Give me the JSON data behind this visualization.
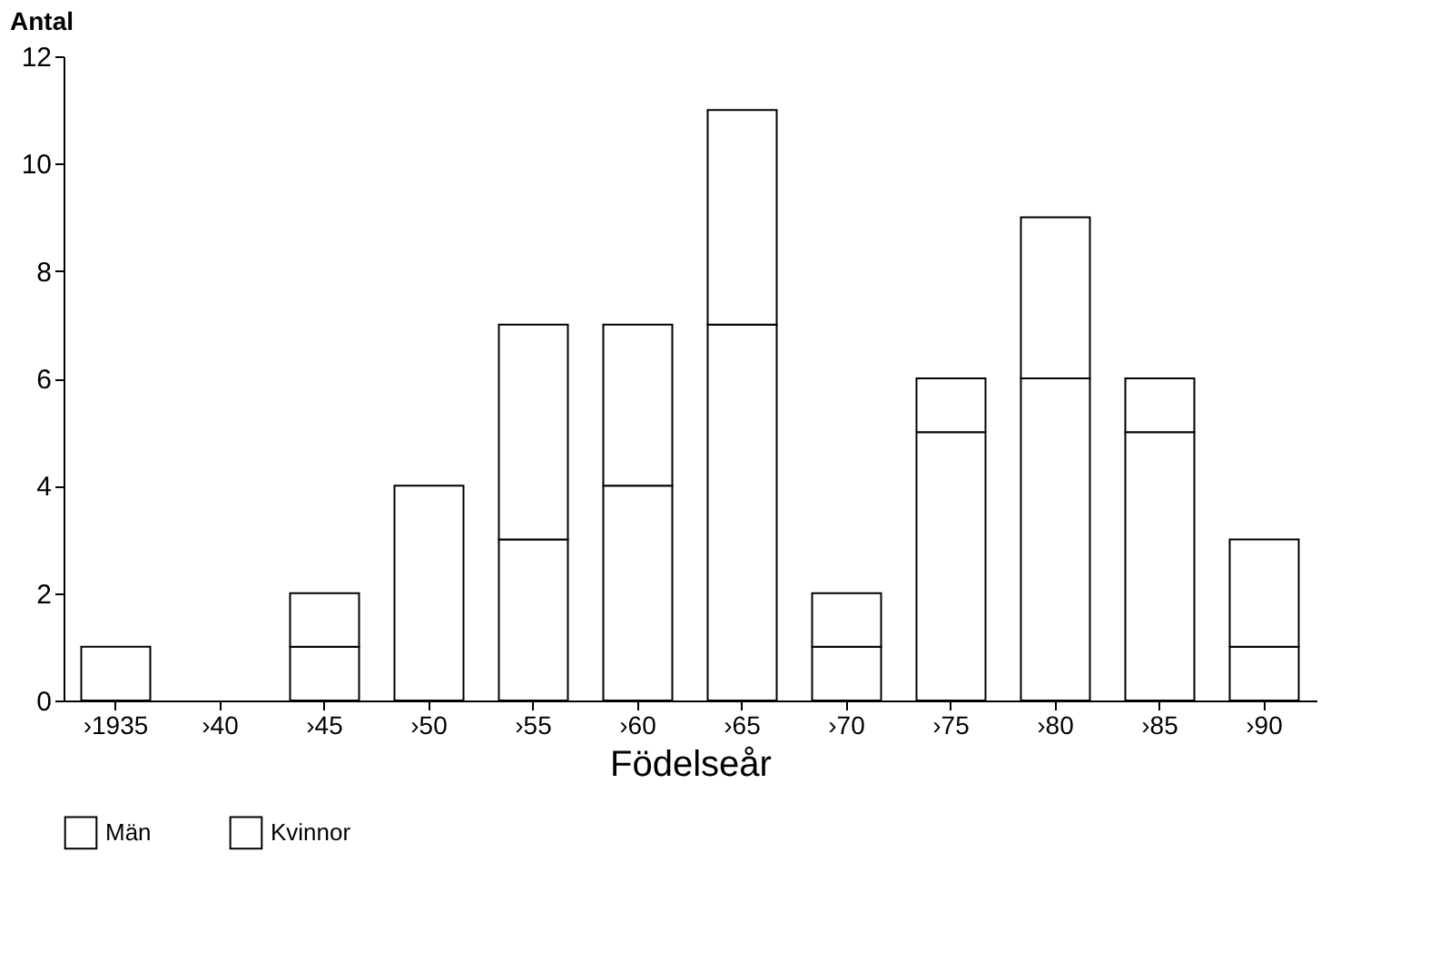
{
  "chart_data": {
    "type": "bar",
    "stacked": true,
    "xlabel": "Födelseår",
    "ylabel": "Antal",
    "categories": [
      "›1935",
      "›40",
      "›45",
      "›50",
      "›55",
      "›60",
      "›65",
      "›70",
      "›75",
      "›80",
      "›85",
      "›90"
    ],
    "series": [
      {
        "name": "Män",
        "color": "#ffffff",
        "values": [
          1,
          0,
          1,
          4,
          3,
          4,
          7,
          1,
          5,
          6,
          5,
          1
        ]
      },
      {
        "name": "Kvinnor",
        "color": "#ffffff",
        "values": [
          0,
          0,
          1,
          0,
          4,
          3,
          4,
          1,
          1,
          3,
          1,
          2
        ]
      }
    ],
    "ylim": [
      0,
      12
    ],
    "yticks": [
      0,
      2,
      4,
      6,
      8,
      10,
      12
    ],
    "grid": false,
    "legend": "bottom"
  }
}
